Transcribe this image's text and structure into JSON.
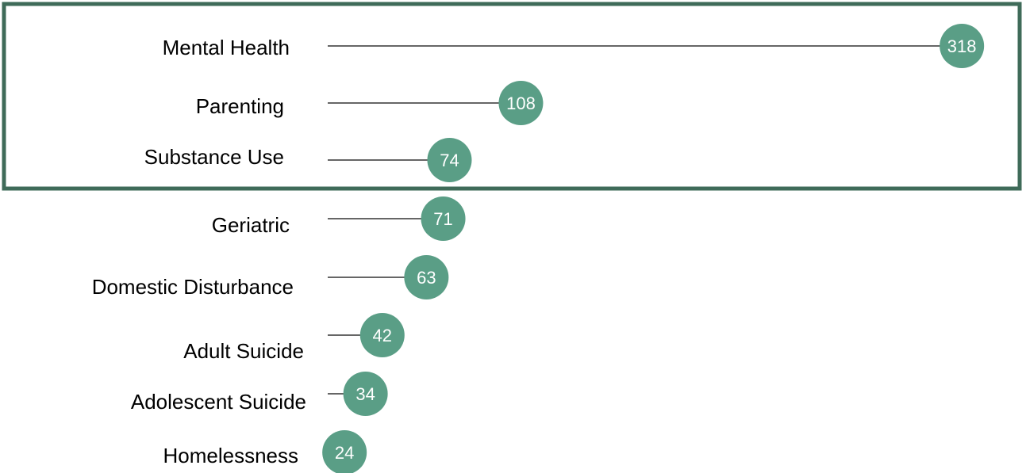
{
  "colors": {
    "marker": "#5a9e86",
    "highlight_border": "#3f6b59",
    "stem": "#333333",
    "label_text": "#000000",
    "value_text": "#ffffff"
  },
  "chart_data": {
    "type": "lollipop",
    "categories": [
      "Mental Health",
      "Parenting",
      "Substance Use",
      "Geriatric",
      "Domestic Disturbance",
      "Adult Suicide",
      "Adolescent Suicide",
      "Homelessness"
    ],
    "values": [
      318,
      108,
      74,
      71,
      63,
      42,
      34,
      24
    ],
    "highlighted_categories": [
      "Mental Health",
      "Parenting",
      "Substance Use"
    ],
    "grid": false,
    "legend": "none"
  }
}
